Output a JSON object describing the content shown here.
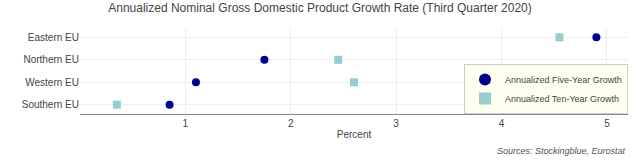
{
  "chart_data": {
    "type": "scatter",
    "orientation": "horizontal",
    "title": "Annualized Nominal Gross Domestic Product Growth Rate (Third Quarter 2020)",
    "xlabel": "Percent",
    "annotations": [
      "Sources: Stockingblue, Eurostat"
    ],
    "categories": [
      "Eastern EU",
      "Northern EU",
      "Western EU",
      "Southern EU"
    ],
    "series": [
      {
        "name": "Annualized Five-Year Growth",
        "color": "#00008B",
        "marker": "circle",
        "values": [
          4.9,
          1.75,
          1.1,
          0.85
        ]
      },
      {
        "name": "Annualized Ten-Year Growth",
        "color": "#99CCCC",
        "marker": "square",
        "values": [
          4.55,
          2.45,
          2.6,
          0.35
        ]
      }
    ],
    "xlim": [
      0,
      5.2
    ],
    "xticks": [
      1,
      2,
      3,
      4,
      5
    ],
    "grid": true,
    "legend": "lower right"
  }
}
